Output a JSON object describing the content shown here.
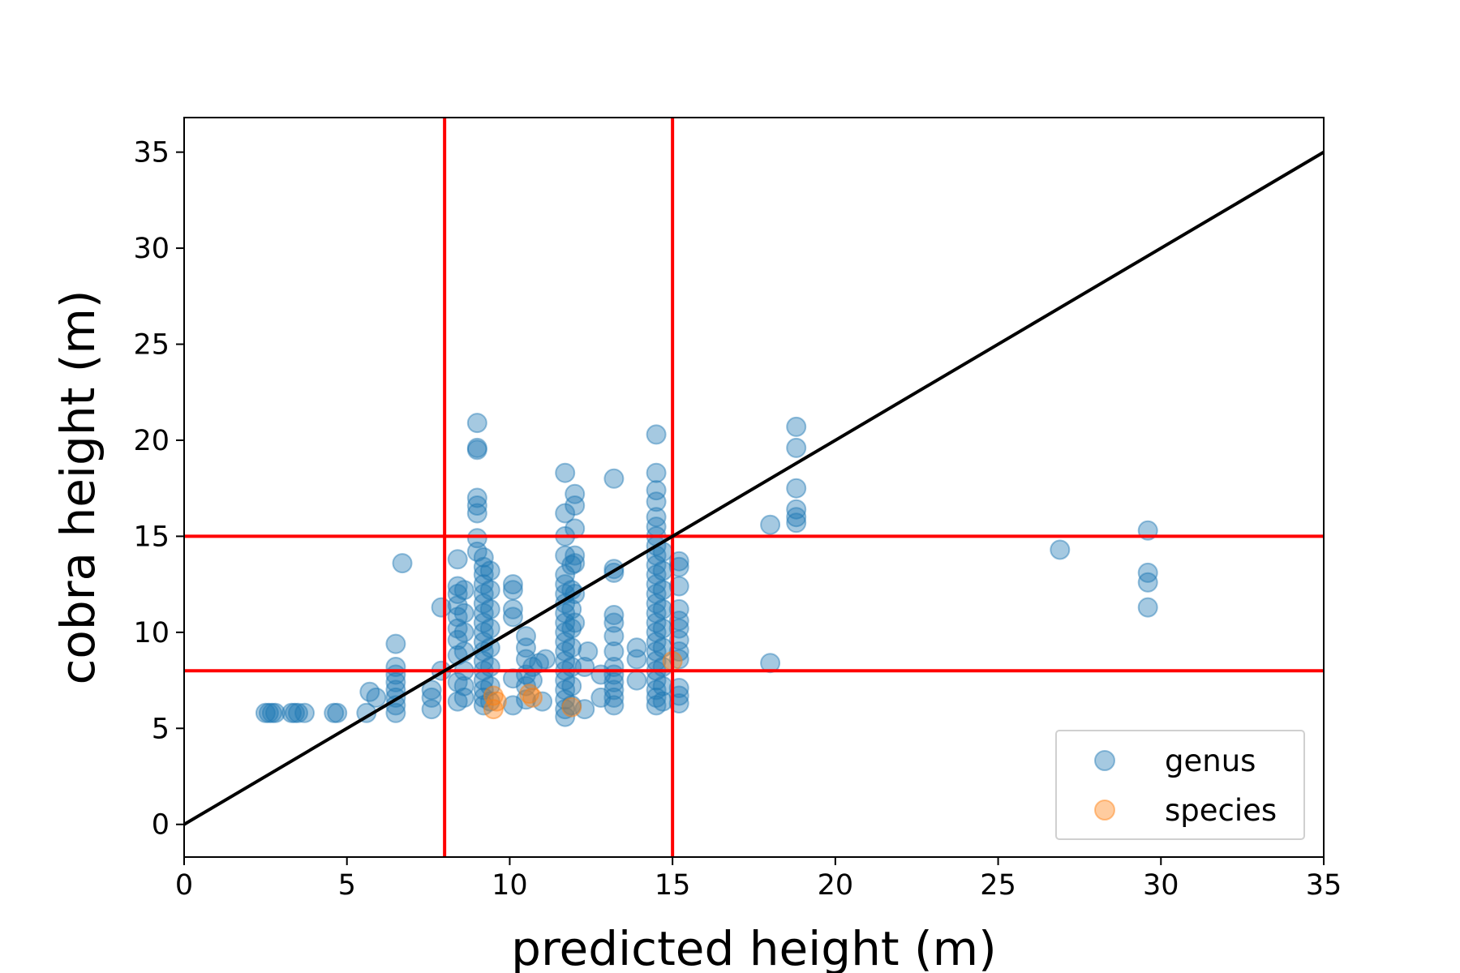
{
  "chart_data": {
    "type": "scatter",
    "title": "",
    "xlabel": "predicted height (m)",
    "ylabel": "cobra height (m)",
    "xlim": [
      0,
      35
    ],
    "ylim": [
      -1.7,
      36.8
    ],
    "xticks": [
      0,
      5,
      10,
      15,
      20,
      25,
      30,
      35
    ],
    "yticks": [
      0,
      5,
      10,
      15,
      20,
      25,
      30,
      35
    ],
    "grid": false,
    "legend_position": "lower right",
    "reference_lines": {
      "identity": {
        "from": [
          0,
          0
        ],
        "to": [
          35,
          35
        ],
        "color": "#000000"
      },
      "vertical": [
        8,
        15
      ],
      "horizontal": [
        8,
        15
      ],
      "threshold_color": "#ff0000"
    },
    "series": [
      {
        "name": "genus",
        "color": "#1f77b4",
        "points": [
          [
            2.5,
            5.8
          ],
          [
            2.6,
            5.8
          ],
          [
            2.7,
            5.8
          ],
          [
            2.8,
            5.8
          ],
          [
            3.3,
            5.8
          ],
          [
            3.4,
            5.8
          ],
          [
            3.5,
            5.8
          ],
          [
            3.7,
            5.8
          ],
          [
            4.6,
            5.8
          ],
          [
            4.7,
            5.8
          ],
          [
            5.6,
            5.8
          ],
          [
            5.7,
            6.9
          ],
          [
            5.9,
            6.6
          ],
          [
            6.5,
            5.8
          ],
          [
            6.5,
            6.2
          ],
          [
            6.5,
            6.6
          ],
          [
            6.5,
            7.0
          ],
          [
            6.5,
            7.4
          ],
          [
            6.5,
            7.8
          ],
          [
            6.5,
            8.2
          ],
          [
            6.5,
            9.4
          ],
          [
            6.7,
            13.6
          ],
          [
            7.6,
            6.0
          ],
          [
            7.6,
            6.6
          ],
          [
            7.6,
            7.0
          ],
          [
            7.9,
            11.3
          ],
          [
            7.9,
            8.0
          ],
          [
            8.4,
            6.4
          ],
          [
            8.4,
            7.4
          ],
          [
            8.4,
            8.8
          ],
          [
            8.4,
            9.6
          ],
          [
            8.4,
            10.2
          ],
          [
            8.4,
            10.8
          ],
          [
            8.4,
            11.4
          ],
          [
            8.4,
            12.0
          ],
          [
            8.4,
            12.4
          ],
          [
            8.4,
            13.8
          ],
          [
            8.6,
            6.6
          ],
          [
            8.6,
            7.2
          ],
          [
            8.6,
            8.0
          ],
          [
            8.6,
            9.0
          ],
          [
            8.6,
            10.0
          ],
          [
            8.6,
            11.0
          ],
          [
            8.6,
            12.2
          ],
          [
            9.0,
            20.9
          ],
          [
            9.0,
            19.6
          ],
          [
            9.0,
            19.5
          ],
          [
            9.0,
            17.0
          ],
          [
            9.0,
            16.6
          ],
          [
            9.0,
            16.2
          ],
          [
            9.0,
            14.9
          ],
          [
            9.0,
            14.2
          ],
          [
            9.2,
            6.2
          ],
          [
            9.2,
            6.6
          ],
          [
            9.2,
            7.0
          ],
          [
            9.2,
            7.5
          ],
          [
            9.2,
            8.0
          ],
          [
            9.2,
            8.5
          ],
          [
            9.2,
            9.0
          ],
          [
            9.2,
            9.5
          ],
          [
            9.2,
            10.0
          ],
          [
            9.2,
            10.5
          ],
          [
            9.2,
            11.0
          ],
          [
            9.2,
            11.5
          ],
          [
            9.2,
            12.0
          ],
          [
            9.2,
            12.5
          ],
          [
            9.2,
            13.0
          ],
          [
            9.2,
            13.4
          ],
          [
            9.2,
            13.9
          ],
          [
            9.4,
            6.4
          ],
          [
            9.4,
            7.2
          ],
          [
            9.4,
            8.2
          ],
          [
            9.4,
            9.2
          ],
          [
            9.4,
            10.2
          ],
          [
            9.4,
            11.2
          ],
          [
            9.4,
            12.2
          ],
          [
            9.4,
            13.2
          ],
          [
            10.1,
            6.2
          ],
          [
            10.1,
            7.6
          ],
          [
            10.1,
            10.8
          ],
          [
            10.1,
            11.2
          ],
          [
            10.1,
            12.2
          ],
          [
            10.1,
            12.5
          ],
          [
            10.5,
            6.5
          ],
          [
            10.5,
            7.2
          ],
          [
            10.5,
            7.8
          ],
          [
            10.5,
            8.6
          ],
          [
            10.5,
            9.2
          ],
          [
            10.5,
            9.8
          ],
          [
            10.7,
            7.5
          ],
          [
            10.7,
            8.2
          ],
          [
            10.9,
            8.4
          ],
          [
            11.0,
            6.4
          ],
          [
            11.1,
            8.6
          ],
          [
            11.7,
            5.6
          ],
          [
            11.7,
            6.0
          ],
          [
            11.7,
            6.5
          ],
          [
            11.7,
            7.0
          ],
          [
            11.7,
            7.5
          ],
          [
            11.7,
            8.0
          ],
          [
            11.7,
            8.5
          ],
          [
            11.7,
            9.0
          ],
          [
            11.7,
            9.5
          ],
          [
            11.7,
            10.0
          ],
          [
            11.7,
            10.5
          ],
          [
            11.7,
            11.0
          ],
          [
            11.7,
            11.5
          ],
          [
            11.7,
            12.0
          ],
          [
            11.7,
            12.5
          ],
          [
            11.7,
            13.0
          ],
          [
            11.7,
            14.0
          ],
          [
            11.7,
            15.0
          ],
          [
            11.7,
            16.2
          ],
          [
            11.7,
            18.3
          ],
          [
            11.9,
            6.2
          ],
          [
            11.9,
            7.2
          ],
          [
            11.9,
            8.2
          ],
          [
            11.9,
            9.2
          ],
          [
            11.9,
            10.2
          ],
          [
            11.9,
            11.2
          ],
          [
            11.9,
            12.2
          ],
          [
            11.9,
            13.5
          ],
          [
            12.0,
            17.2
          ],
          [
            12.0,
            16.6
          ],
          [
            12.0,
            15.4
          ],
          [
            12.0,
            14.0
          ],
          [
            12.0,
            13.6
          ],
          [
            12.0,
            12.0
          ],
          [
            12.0,
            10.5
          ],
          [
            12.3,
            6.0
          ],
          [
            12.3,
            8.2
          ],
          [
            12.4,
            9.0
          ],
          [
            12.8,
            6.6
          ],
          [
            12.8,
            7.8
          ],
          [
            13.2,
            18.0
          ],
          [
            13.2,
            13.3
          ],
          [
            13.2,
            13.1
          ],
          [
            13.2,
            10.9
          ],
          [
            13.2,
            10.5
          ],
          [
            13.2,
            9.8
          ],
          [
            13.2,
            9.0
          ],
          [
            13.2,
            6.2
          ],
          [
            13.2,
            6.6
          ],
          [
            13.2,
            7.0
          ],
          [
            13.2,
            7.4
          ],
          [
            13.2,
            7.8
          ],
          [
            13.2,
            8.2
          ],
          [
            13.9,
            9.2
          ],
          [
            13.9,
            8.6
          ],
          [
            13.9,
            7.5
          ],
          [
            14.5,
            20.3
          ],
          [
            14.5,
            18.3
          ],
          [
            14.5,
            17.4
          ],
          [
            14.5,
            16.8
          ],
          [
            14.5,
            16.0
          ],
          [
            14.5,
            15.5
          ],
          [
            14.5,
            6.2
          ],
          [
            14.5,
            6.6
          ],
          [
            14.5,
            7.0
          ],
          [
            14.5,
            7.5
          ],
          [
            14.5,
            8.0
          ],
          [
            14.5,
            8.5
          ],
          [
            14.5,
            9.0
          ],
          [
            14.5,
            9.5
          ],
          [
            14.5,
            10.0
          ],
          [
            14.5,
            10.5
          ],
          [
            14.5,
            11.0
          ],
          [
            14.5,
            11.5
          ],
          [
            14.5,
            12.0
          ],
          [
            14.5,
            12.5
          ],
          [
            14.5,
            13.0
          ],
          [
            14.5,
            13.5
          ],
          [
            14.5,
            14.0
          ],
          [
            14.5,
            14.5
          ],
          [
            14.5,
            15.0
          ],
          [
            14.7,
            6.4
          ],
          [
            14.7,
            7.2
          ],
          [
            14.7,
            8.2
          ],
          [
            14.7,
            9.2
          ],
          [
            14.7,
            10.2
          ],
          [
            14.7,
            11.2
          ],
          [
            14.7,
            12.2
          ],
          [
            14.7,
            13.2
          ],
          [
            14.7,
            14.2
          ],
          [
            15.2,
            13.7
          ],
          [
            15.2,
            13.4
          ],
          [
            15.2,
            12.4
          ],
          [
            15.2,
            11.2
          ],
          [
            15.2,
            10.6
          ],
          [
            15.2,
            10.2
          ],
          [
            15.2,
            9.6
          ],
          [
            15.2,
            9.0
          ],
          [
            15.2,
            8.6
          ],
          [
            15.2,
            7.1
          ],
          [
            15.2,
            6.7
          ],
          [
            15.2,
            6.3
          ],
          [
            18.0,
            15.6
          ],
          [
            18.0,
            8.4
          ],
          [
            18.8,
            20.7
          ],
          [
            18.8,
            19.6
          ],
          [
            18.8,
            17.5
          ],
          [
            18.8,
            16.4
          ],
          [
            18.8,
            16.0
          ],
          [
            18.8,
            15.7
          ],
          [
            26.9,
            14.3
          ],
          [
            29.6,
            15.3
          ],
          [
            29.6,
            13.1
          ],
          [
            29.6,
            12.6
          ],
          [
            29.6,
            11.3
          ]
        ]
      },
      {
        "name": "species",
        "color": "#ff7f0e",
        "points": [
          [
            9.5,
            6.7
          ],
          [
            9.5,
            6.0
          ],
          [
            9.6,
            6.4
          ],
          [
            10.6,
            6.8
          ],
          [
            10.7,
            6.6
          ],
          [
            11.9,
            6.1
          ],
          [
            15.0,
            8.5
          ]
        ]
      }
    ]
  }
}
